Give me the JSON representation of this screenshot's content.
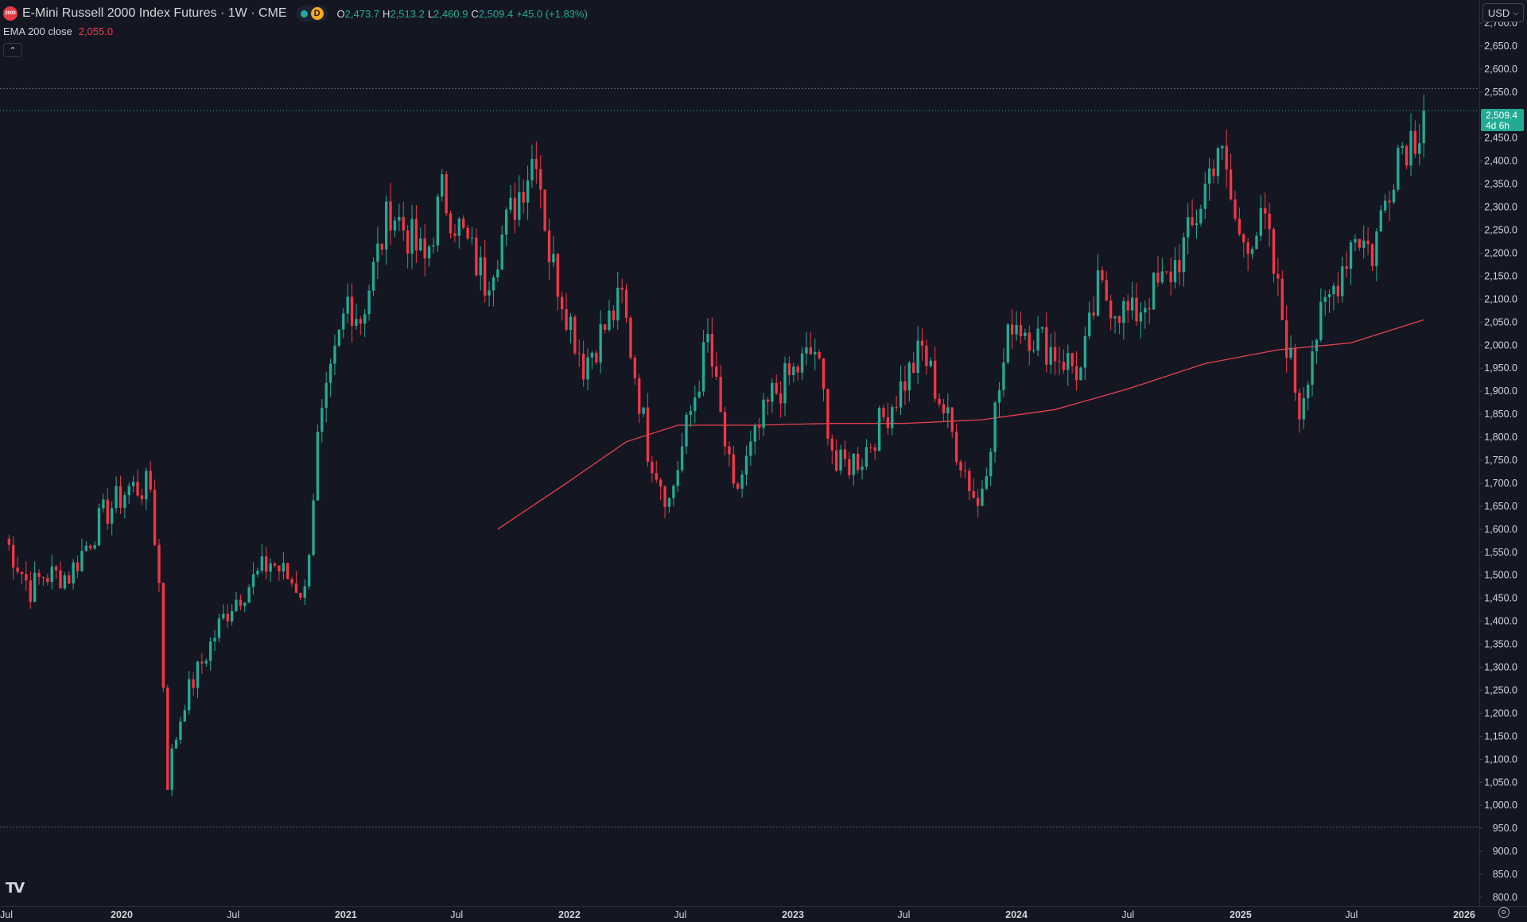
{
  "header": {
    "symbol_title": "E-Mini Russell 2000 Index Futures · 1W · CME",
    "logo_text": "2000",
    "delay_badge": "D",
    "ohlc": [
      {
        "key": "O",
        "value": "2,473.7"
      },
      {
        "key": "H",
        "value": "2,513.2"
      },
      {
        "key": "L",
        "value": "2,460.9"
      },
      {
        "key": "C",
        "value": "2,509.4"
      },
      {
        "key": "",
        "value": "+45.0 (+1.83%)"
      }
    ]
  },
  "indicator": {
    "name": "EMA 200 close",
    "value": "2,055.0"
  },
  "currency": "USD",
  "price_tag": {
    "price": "2,509.4",
    "countdown": "4d 6h"
  },
  "colors": {
    "background": "#141722",
    "up": "#22ab94",
    "down": "#f23645",
    "ema": "#e5414f",
    "grid_text": "#d1d4dc"
  },
  "chart_data": {
    "type": "candlestick",
    "title": "E-Mini Russell 2000 Index Futures · 1W · CME",
    "ylim": [
      800,
      2700
    ],
    "y_ticks": [
      800,
      850,
      900,
      950,
      1000,
      1050,
      1100,
      1150,
      1200,
      1250,
      1300,
      1350,
      1400,
      1450,
      1500,
      1550,
      1600,
      1650,
      1700,
      1750,
      1800,
      1850,
      1900,
      1950,
      2000,
      2050,
      2100,
      2150,
      2200,
      2250,
      2300,
      2350,
      2400,
      2450,
      2500,
      2550,
      2600,
      2650,
      2700
    ],
    "x_ticks": [
      {
        "label": "Jul",
        "date": "2019-07-01",
        "bold": false
      },
      {
        "label": "2020",
        "date": "2020-01-01",
        "bold": true
      },
      {
        "label": "Jul",
        "date": "2020-07-01",
        "bold": false
      },
      {
        "label": "2021",
        "date": "2021-01-01",
        "bold": true
      },
      {
        "label": "Jul",
        "date": "2021-07-01",
        "bold": false
      },
      {
        "label": "2022",
        "date": "2022-01-01",
        "bold": true
      },
      {
        "label": "Jul",
        "date": "2022-07-01",
        "bold": false
      },
      {
        "label": "2023",
        "date": "2023-01-01",
        "bold": true
      },
      {
        "label": "Jul",
        "date": "2023-07-01",
        "bold": false
      },
      {
        "label": "2024",
        "date": "2024-01-01",
        "bold": true
      },
      {
        "label": "Jul",
        "date": "2024-07-01",
        "bold": false
      },
      {
        "label": "2025",
        "date": "2025-01-01",
        "bold": true
      },
      {
        "label": "Jul",
        "date": "2025-07-01",
        "bold": false
      },
      {
        "label": "2026",
        "date": "2026-01-01",
        "bold": true
      }
    ],
    "horizontal_levels": [
      2558,
      953
    ],
    "current_price": 2509.4,
    "close_series_weekly": [
      {
        "date": "2019-06-24",
        "close": 1580
      },
      {
        "date": "2019-08-05",
        "close": 1470
      },
      {
        "date": "2019-08-26",
        "close": 1500
      },
      {
        "date": "2019-10-07",
        "close": 1500
      },
      {
        "date": "2019-12-02",
        "close": 1630
      },
      {
        "date": "2020-01-13",
        "close": 1690
      },
      {
        "date": "2020-02-17",
        "close": 1690
      },
      {
        "date": "2020-03-02",
        "close": 1480
      },
      {
        "date": "2020-03-16",
        "close": 1050
      },
      {
        "date": "2020-03-23",
        "close": 1110
      },
      {
        "date": "2020-04-13",
        "close": 1230
      },
      {
        "date": "2020-06-08",
        "close": 1390
      },
      {
        "date": "2020-06-29",
        "close": 1440
      },
      {
        "date": "2020-08-31",
        "close": 1530
      },
      {
        "date": "2020-10-26",
        "close": 1460
      },
      {
        "date": "2020-11-16",
        "close": 1790
      },
      {
        "date": "2021-01-04",
        "close": 2100
      },
      {
        "date": "2021-01-25",
        "close": 2060
      },
      {
        "date": "2021-03-15",
        "close": 2300
      },
      {
        "date": "2021-05-10",
        "close": 2180
      },
      {
        "date": "2021-06-07",
        "close": 2330
      },
      {
        "date": "2021-08-16",
        "close": 2140
      },
      {
        "date": "2021-11-08",
        "close": 2430
      },
      {
        "date": "2021-11-29",
        "close": 2200
      },
      {
        "date": "2022-01-24",
        "close": 1960
      },
      {
        "date": "2022-03-28",
        "close": 2100
      },
      {
        "date": "2022-05-09",
        "close": 1780
      },
      {
        "date": "2022-06-13",
        "close": 1660
      },
      {
        "date": "2022-08-15",
        "close": 2010
      },
      {
        "date": "2022-09-26",
        "close": 1670
      },
      {
        "date": "2022-11-28",
        "close": 1890
      },
      {
        "date": "2023-02-06",
        "close": 1990
      },
      {
        "date": "2023-03-13",
        "close": 1730
      },
      {
        "date": "2023-04-24",
        "close": 1760
      },
      {
        "date": "2023-07-31",
        "close": 1990
      },
      {
        "date": "2023-09-25",
        "close": 1780
      },
      {
        "date": "2023-10-30",
        "close": 1650
      },
      {
        "date": "2023-12-25",
        "close": 2060
      },
      {
        "date": "2024-04-15",
        "close": 1940
      },
      {
        "date": "2024-05-13",
        "close": 2120
      },
      {
        "date": "2024-07-08",
        "close": 2060
      },
      {
        "date": "2024-08-05",
        "close": 2110
      },
      {
        "date": "2024-09-02",
        "close": 2140
      },
      {
        "date": "2024-10-14",
        "close": 2250
      },
      {
        "date": "2024-11-25",
        "close": 2440
      },
      {
        "date": "2024-12-30",
        "close": 2230
      },
      {
        "date": "2025-02-10",
        "close": 2260
      },
      {
        "date": "2025-04-07",
        "close": 1860
      },
      {
        "date": "2025-04-28",
        "close": 2000
      },
      {
        "date": "2025-06-09",
        "close": 2150
      },
      {
        "date": "2025-07-07",
        "close": 2250
      },
      {
        "date": "2025-08-04",
        "close": 2200
      },
      {
        "date": "2025-09-15",
        "close": 2430
      },
      {
        "date": "2025-10-13",
        "close": 2460
      },
      {
        "date": "2025-10-27",
        "close": 2509.4
      }
    ],
    "ema_200": [
      {
        "date": "2021-09-06",
        "value": 1600
      },
      {
        "date": "2021-12-27",
        "value": 1700
      },
      {
        "date": "2022-04-04",
        "value": 1790
      },
      {
        "date": "2022-06-27",
        "value": 1826
      },
      {
        "date": "2022-10-31",
        "value": 1826
      },
      {
        "date": "2023-03-06",
        "value": 1830
      },
      {
        "date": "2023-07-03",
        "value": 1830
      },
      {
        "date": "2023-11-06",
        "value": 1838
      },
      {
        "date": "2024-03-04",
        "value": 1860
      },
      {
        "date": "2024-07-01",
        "value": 1905
      },
      {
        "date": "2024-11-04",
        "value": 1960
      },
      {
        "date": "2025-03-03",
        "value": 1990
      },
      {
        "date": "2025-06-30",
        "value": 2005
      },
      {
        "date": "2025-10-27",
        "value": 2055
      }
    ]
  }
}
